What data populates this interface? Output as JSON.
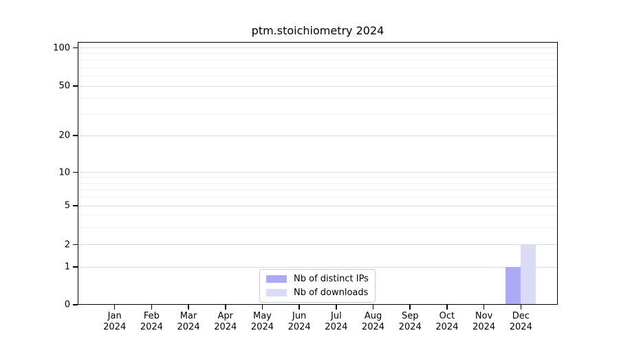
{
  "chart_data": {
    "type": "bar",
    "title": "ptm.stoichiometry 2024",
    "scale": "symlog",
    "grid": "horizontal",
    "categories": [
      "Jan",
      "Feb",
      "Mar",
      "Apr",
      "May",
      "Jun",
      "Jul",
      "Aug",
      "Sep",
      "Oct",
      "Nov",
      "Dec"
    ],
    "year": "2024",
    "series": [
      {
        "name": "Nb of distinct IPs",
        "color": "#aaaaf7",
        "values": [
          0,
          0,
          0,
          0,
          0,
          0,
          0,
          0,
          0,
          0,
          0,
          1
        ]
      },
      {
        "name": "Nb of downloads",
        "color": "#dbdbf8",
        "values": [
          0,
          0,
          0,
          0,
          0,
          0,
          0,
          0,
          0,
          0,
          0,
          2
        ]
      }
    ],
    "y_ticks": [
      0,
      1,
      2,
      5,
      10,
      20,
      50,
      100
    ],
    "y_minor_ticks": [
      3,
      4,
      6,
      7,
      8,
      9,
      30,
      40,
      60,
      70,
      80,
      90
    ],
    "ylim": [
      0,
      110
    ],
    "legend_position": "bottom-center",
    "colors": {
      "grid_major": "#d9d9d9",
      "grid_minor": "#f0f0f0",
      "spine": "#000000",
      "legend_border": "#cccccc"
    }
  }
}
